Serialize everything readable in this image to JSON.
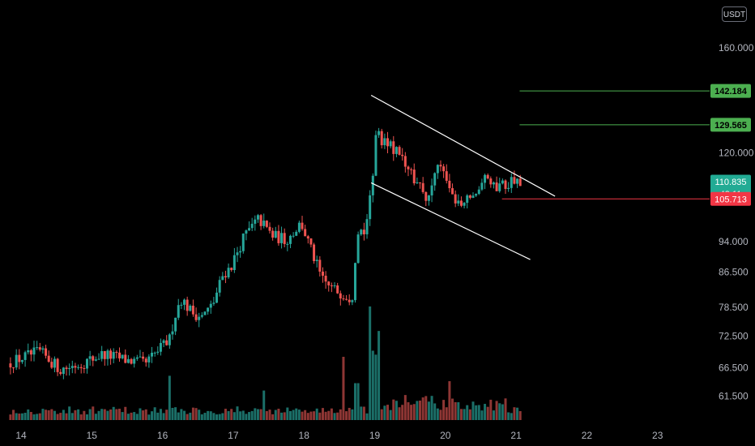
{
  "chart_data": {
    "type": "candlestick",
    "currency": "USDT",
    "y_scale": "log",
    "ylim": [
      58,
      180
    ],
    "y_ticks": [
      "160.000",
      "120.000",
      "94.000",
      "86.500",
      "78.500",
      "72.500",
      "66.500",
      "61.500"
    ],
    "x_ticks": [
      "14",
      "15",
      "16",
      "17",
      "18",
      "19",
      "20",
      "21",
      "22",
      "23"
    ],
    "x_range_days": [
      13.85,
      23.55
    ],
    "last_data_day": 21.08,
    "price_path": [
      [
        13.85,
        67.3
      ],
      [
        14.3,
        69.5
      ],
      [
        14.6,
        66.2
      ],
      [
        14.9,
        67.3
      ],
      [
        15.2,
        69.0
      ],
      [
        15.5,
        68.0
      ],
      [
        15.8,
        67.2
      ],
      [
        16.05,
        70.6
      ],
      [
        16.15,
        72.0
      ],
      [
        16.2,
        76.0
      ],
      [
        16.3,
        80.5
      ],
      [
        16.45,
        77.5
      ],
      [
        16.6,
        76.5
      ],
      [
        16.75,
        79.0
      ],
      [
        16.9,
        86.0
      ],
      [
        17.0,
        87.5
      ],
      [
        17.2,
        95.5
      ],
      [
        17.4,
        100.0
      ],
      [
        17.6,
        95.5
      ],
      [
        17.8,
        94.5
      ],
      [
        18.0,
        99.0
      ],
      [
        18.15,
        91.5
      ],
      [
        18.3,
        84.5
      ],
      [
        18.45,
        82.5
      ],
      [
        18.6,
        81.5
      ],
      [
        18.72,
        80.5
      ],
      [
        18.8,
        97.5
      ],
      [
        18.9,
        96.5
      ],
      [
        19.0,
        108.0
      ],
      [
        19.05,
        127.0
      ],
      [
        19.15,
        124.0
      ],
      [
        19.3,
        122.0
      ],
      [
        19.5,
        115.0
      ],
      [
        19.65,
        110.0
      ],
      [
        19.8,
        104.5
      ],
      [
        19.95,
        118.0
      ],
      [
        20.1,
        108.0
      ],
      [
        20.25,
        103.5
      ],
      [
        20.45,
        107.0
      ],
      [
        20.6,
        111.5
      ],
      [
        20.75,
        109.0
      ],
      [
        20.9,
        110.5
      ],
      [
        21.08,
        110.835
      ]
    ],
    "volume_spikes": [
      [
        16.1,
        0.42
      ],
      [
        18.75,
        0.35
      ],
      [
        18.95,
        1.0
      ],
      [
        19.05,
        0.82
      ],
      [
        19.0,
        0.6
      ],
      [
        18.55,
        0.6
      ],
      [
        20.05,
        0.35
      ],
      [
        17.45,
        0.28
      ]
    ],
    "channel_lines": [
      {
        "start": [
          18.95,
          140.5
        ],
        "end": [
          21.55,
          106.5
        ],
        "color": "#ffffff"
      },
      {
        "start": [
          18.95,
          110.5
        ],
        "end": [
          21.2,
          89.5
        ],
        "color": "#ffffff"
      }
    ],
    "target_lines": [
      {
        "value": 142.184,
        "start": 21.05,
        "color": "#4caf50"
      },
      {
        "value": 129.565,
        "start": 21.05,
        "color": "#4caf50"
      }
    ],
    "stop_line": {
      "value": 105.713,
      "start": 20.8,
      "color": "#f23645"
    },
    "price_tags": [
      {
        "label": "142.184",
        "value": 142.184,
        "color": "#4caf50",
        "text_color": "#000000"
      },
      {
        "label": "129.565",
        "value": 129.565,
        "color": "#4caf50",
        "text_color": "#000000"
      },
      {
        "label": "110.835",
        "sub_label": "43:11",
        "value": 110.835,
        "color": "#22ab94",
        "text_color": "#ffffff"
      },
      {
        "label": "105.713",
        "value": 105.713,
        "color": "#f23645",
        "text_color": "#ffffff"
      }
    ],
    "colors": {
      "up": "#26a69a",
      "down": "#ef5350",
      "vol_up": "#1b6f68",
      "vol_down": "#8e3634",
      "background": "#000000"
    }
  }
}
